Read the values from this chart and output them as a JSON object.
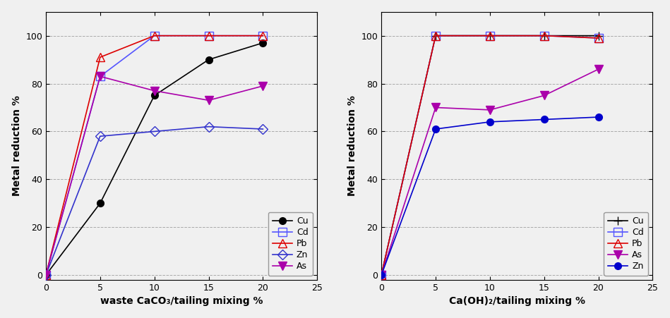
{
  "left": {
    "xlabel": "waste CaCO₃/tailing mixing %",
    "ylabel": "Metal reduction %",
    "xlim": [
      0,
      25
    ],
    "ylim": [
      -2,
      110
    ],
    "yticks": [
      0,
      20,
      40,
      60,
      80,
      100
    ],
    "xticks": [
      0,
      5,
      10,
      15,
      20,
      25
    ],
    "series": {
      "Cu": {
        "x": [
          0,
          5,
          10,
          15,
          20
        ],
        "y": [
          0,
          30,
          75,
          90,
          97
        ]
      },
      "Cd": {
        "x": [
          0,
          5,
          10,
          15,
          20
        ],
        "y": [
          0,
          83,
          100,
          100,
          100
        ]
      },
      "Pb": {
        "x": [
          0,
          5,
          10,
          15,
          20
        ],
        "y": [
          0,
          91,
          100,
          100,
          100
        ]
      },
      "Zn": {
        "x": [
          0,
          5,
          10,
          15,
          20
        ],
        "y": [
          0,
          58,
          60,
          62,
          61
        ]
      },
      "As": {
        "x": [
          0,
          5,
          10,
          15,
          20
        ],
        "y": [
          0,
          83,
          77,
          73,
          79
        ]
      }
    },
    "legend_order": [
      "Cu",
      "Cd",
      "Pb",
      "Zn",
      "As"
    ]
  },
  "right": {
    "xlabel": "Ca(OH)₂/tailing mixing %",
    "ylabel": "Metal reduction %",
    "xlim": [
      0,
      25
    ],
    "ylim": [
      -2,
      110
    ],
    "yticks": [
      0,
      20,
      40,
      60,
      80,
      100
    ],
    "xticks": [
      0,
      5,
      10,
      15,
      20,
      25
    ],
    "series": {
      "Cu": {
        "x": [
          0,
          5,
          10,
          15,
          20
        ],
        "y": [
          0,
          100,
          100,
          100,
          100
        ]
      },
      "Cd": {
        "x": [
          0,
          5,
          10,
          15,
          20
        ],
        "y": [
          0,
          100,
          100,
          100,
          99
        ]
      },
      "Pb": {
        "x": [
          0,
          5,
          10,
          15,
          20
        ],
        "y": [
          0,
          100,
          100,
          100,
          99
        ]
      },
      "As": {
        "x": [
          0,
          5,
          10,
          15,
          20
        ],
        "y": [
          0,
          70,
          69,
          75,
          86
        ]
      },
      "Zn": {
        "x": [
          0,
          5,
          10,
          15,
          20
        ],
        "y": [
          0,
          61,
          64,
          65,
          66
        ]
      }
    },
    "legend_order": [
      "Cu",
      "Cd",
      "Pb",
      "As",
      "Zn"
    ]
  },
  "styles": {
    "left": {
      "Cu": {
        "color": "#000000",
        "marker": "o",
        "mfc": "#000000",
        "mec": "#000000",
        "ms": 7,
        "ls": "-",
        "lw": 1.2
      },
      "Cd": {
        "color": "#5555ff",
        "marker": "s",
        "mfc": "none",
        "mec": "#5555ff",
        "ms": 8,
        "ls": "-",
        "lw": 1.2
      },
      "Pb": {
        "color": "#dd0000",
        "marker": "^",
        "mfc": "none",
        "mec": "#dd0000",
        "ms": 8,
        "ls": "-",
        "lw": 1.2
      },
      "Zn": {
        "color": "#3333cc",
        "marker": "D",
        "mfc": "none",
        "mec": "#3333cc",
        "ms": 7,
        "ls": "-",
        "lw": 1.2
      },
      "As": {
        "color": "#aa00aa",
        "marker": "v",
        "mfc": "#aa00aa",
        "mec": "#aa00aa",
        "ms": 8,
        "ls": "-",
        "lw": 1.2
      }
    },
    "right": {
      "Cu": {
        "color": "#000000",
        "marker": "+",
        "mfc": "#000000",
        "mec": "#000000",
        "ms": 9,
        "ls": "-",
        "lw": 1.2
      },
      "Cd": {
        "color": "#5555ff",
        "marker": "s",
        "mfc": "none",
        "mec": "#5555ff",
        "ms": 8,
        "ls": "-",
        "lw": 1.2
      },
      "Pb": {
        "color": "#dd0000",
        "marker": "^",
        "mfc": "none",
        "mec": "#dd0000",
        "ms": 8,
        "ls": "-",
        "lw": 1.2
      },
      "As": {
        "color": "#aa00aa",
        "marker": "v",
        "mfc": "#aa00aa",
        "mec": "#aa00aa",
        "ms": 8,
        "ls": "-",
        "lw": 1.2
      },
      "Zn": {
        "color": "#0000cc",
        "marker": "o",
        "mfc": "#0000cc",
        "mec": "#0000cc",
        "ms": 7,
        "ls": "-",
        "lw": 1.2
      }
    }
  },
  "bg_color": "#f0f0f0",
  "grid_color": "#aaaaaa",
  "font_size_label": 10,
  "font_size_tick": 9,
  "font_size_legend": 9
}
